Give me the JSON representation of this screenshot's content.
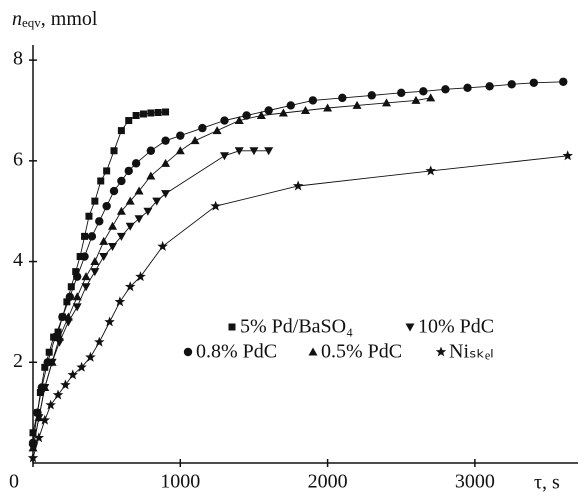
{
  "chart_data": {
    "type": "scatter",
    "ylabel": [
      "n",
      "eqv",
      ", mmol"
    ],
    "xlabel": "τ, s",
    "xlim": [
      0,
      3700
    ],
    "ylim": [
      0,
      8.3
    ],
    "xticks": [
      0,
      1000,
      2000,
      3000
    ],
    "yticks": [
      2,
      4,
      6,
      8
    ],
    "series": [
      {
        "name": "5% Pd/BaSO₄",
        "marker": "square",
        "color": "#111111",
        "x": [
          0,
          30,
          50,
          80,
          110,
          140,
          170,
          200,
          230,
          260,
          290,
          320,
          350,
          380,
          420,
          460,
          500,
          550,
          600,
          650,
          700,
          750,
          800,
          850,
          900
        ],
        "values": [
          0.6,
          1.0,
          1.4,
          1.9,
          2.2,
          2.5,
          2.6,
          2.9,
          3.2,
          3.5,
          3.8,
          4.1,
          4.5,
          4.9,
          5.2,
          5.6,
          5.8,
          6.2,
          6.6,
          6.8,
          6.9,
          6.93,
          6.95,
          6.96,
          6.97
        ]
      },
      {
        "name": "10% PdC",
        "marker": "triangle-down",
        "color": "#111111",
        "x": [
          0,
          40,
          80,
          130,
          180,
          240,
          300,
          360,
          420,
          480,
          540,
          600,
          660,
          720,
          780,
          840,
          900,
          1300,
          1400,
          1500,
          1600
        ],
        "values": [
          0.3,
          0.9,
          1.5,
          2.0,
          2.4,
          2.8,
          3.1,
          3.5,
          3.8,
          4.1,
          4.3,
          4.5,
          4.7,
          4.85,
          5.0,
          5.2,
          5.35,
          6.1,
          6.2,
          6.2,
          6.2
        ]
      },
      {
        "name": "0.8% PdC",
        "marker": "circle",
        "color": "#111111",
        "x": [
          0,
          30,
          60,
          100,
          150,
          200,
          250,
          300,
          350,
          400,
          450,
          500,
          550,
          600,
          650,
          700,
          800,
          900,
          1000,
          1150,
          1300,
          1450,
          1600,
          1750,
          1900,
          2100,
          2300,
          2500,
          2650,
          2800,
          2950,
          3100,
          3250,
          3400,
          3600
        ],
        "values": [
          0.4,
          1.0,
          1.5,
          2.0,
          2.5,
          2.9,
          3.3,
          3.7,
          4.1,
          4.5,
          4.8,
          5.1,
          5.4,
          5.6,
          5.8,
          5.95,
          6.2,
          6.4,
          6.5,
          6.65,
          6.8,
          6.9,
          7.0,
          7.1,
          7.2,
          7.25,
          7.3,
          7.35,
          7.38,
          7.42,
          7.45,
          7.48,
          7.52,
          7.55,
          7.57
        ]
      },
      {
        "name": "0.5% PdC",
        "marker": "triangle-up",
        "color": "#111111",
        "x": [
          0,
          40,
          80,
          130,
          180,
          240,
          300,
          360,
          420,
          480,
          540,
          600,
          660,
          720,
          800,
          900,
          1000,
          1100,
          1250,
          1400,
          1550,
          1700,
          1850,
          2000,
          2200,
          2400,
          2600,
          2700
        ],
        "values": [
          0.3,
          0.9,
          1.5,
          2.0,
          2.5,
          2.9,
          3.3,
          3.7,
          4.0,
          4.4,
          4.7,
          5.0,
          5.2,
          5.4,
          5.7,
          5.95,
          6.2,
          6.4,
          6.6,
          6.8,
          6.9,
          6.95,
          7.0,
          7.05,
          7.1,
          7.15,
          7.2,
          7.25
        ]
      },
      {
        "name": "Niₛₖₑₗ",
        "marker": "star",
        "color": "#111111",
        "x": [
          0,
          40,
          80,
          120,
          170,
          220,
          270,
          330,
          390,
          450,
          520,
          590,
          660,
          730,
          880,
          1240,
          1800,
          2700,
          3630
        ],
        "values": [
          0.1,
          0.5,
          0.85,
          1.15,
          1.35,
          1.55,
          1.75,
          1.9,
          2.1,
          2.4,
          2.8,
          3.2,
          3.5,
          3.7,
          4.3,
          5.1,
          5.5,
          5.8,
          6.1
        ]
      }
    ]
  }
}
